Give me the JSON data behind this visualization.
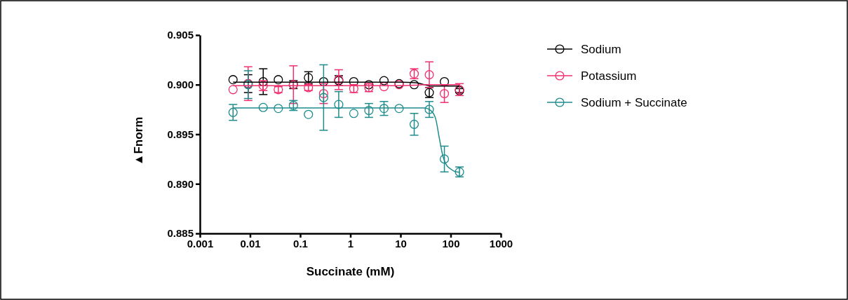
{
  "chart_data": {
    "type": "scatter",
    "xlabel": "Succinate (mM)",
    "ylabel": "▲Fnorm",
    "log": "x",
    "marker": "circle",
    "legend": "right",
    "xlim": [
      0.001,
      1000
    ],
    "xticks": [
      0.001,
      0.01,
      0.1,
      1,
      10,
      100,
      1000
    ],
    "ylim": [
      0.885,
      0.905
    ],
    "yticks": [
      {
        "value": 0.885,
        "label": "0.885"
      },
      {
        "value": 0.89,
        "label": "0.890"
      },
      {
        "value": 0.895,
        "label": "0.895"
      },
      {
        "value": 0.9,
        "label": "0.900"
      },
      {
        "value": 0.905,
        "label": "0.905"
      }
    ],
    "x": [
      0.00458,
      0.00916,
      0.0183,
      0.0366,
      0.0732,
      0.146,
      0.293,
      0.586,
      1.17,
      2.34,
      4.69,
      9.38,
      18.75,
      37.5,
      75,
      150
    ],
    "series": [
      {
        "name": "Sodium",
        "color": "#000000",
        "values": [
          0.9005,
          0.9001,
          0.9003,
          0.9005,
          0.9,
          0.9007,
          0.9003,
          0.9004,
          0.9003,
          0.9,
          0.9004,
          0.9001,
          0.9,
          0.8992,
          0.9003,
          0.8994
        ],
        "errors": [
          null,
          0.0009,
          0.0013,
          null,
          0.0004,
          0.0006,
          null,
          0.0005,
          null,
          null,
          null,
          null,
          null,
          0.0005,
          null,
          0.0002
        ]
      },
      {
        "name": "Potassium",
        "color": "#f0306e",
        "values": [
          0.8995,
          0.9001,
          0.8999,
          0.8995,
          0.9,
          0.8997,
          0.8991,
          0.9005,
          0.8996,
          0.8997,
          0.8998,
          0.9,
          0.9011,
          0.901,
          0.8991,
          0.8995
        ],
        "errors": [
          null,
          0.0017,
          0.0005,
          0.0003,
          0.0019,
          0.0003,
          0.001,
          0.001,
          0.0004,
          0.0004,
          null,
          null,
          0.0005,
          0.0013,
          0.0009,
          0.0006
        ]
      },
      {
        "name": "Sodium + Succinate",
        "color": "#1f8c8c",
        "values": [
          0.8972,
          0.9,
          0.8977,
          0.8976,
          0.8979,
          0.897,
          0.8987,
          0.898,
          0.8971,
          0.8974,
          0.8976,
          0.8976,
          0.896,
          0.8975,
          0.8925,
          0.8912
        ],
        "errors": [
          0.0008,
          0.0014,
          null,
          null,
          0.0005,
          null,
          0.0033,
          0.0013,
          null,
          0.0007,
          0.0007,
          null,
          0.0011,
          0.0008,
          0.0013,
          0.0005
        ]
      },
      {
        "type": "line",
        "marker": "none",
        "color": "#000000",
        "x": [
          0.00458,
          10,
          20,
          30,
          40,
          150
        ],
        "values": [
          0.90025,
          0.90025,
          0.9002,
          0.9,
          0.89985,
          0.89985
        ]
      },
      {
        "type": "line",
        "marker": "none",
        "color": "#f0306e",
        "x": [
          0.00458,
          10,
          20,
          30,
          150
        ],
        "values": [
          0.8999,
          0.8999,
          0.89995,
          0.9,
          0.9
        ]
      },
      {
        "type": "line",
        "marker": "none",
        "color": "#1f8c8c",
        "x": [
          0.00458,
          30,
          40,
          50,
          60,
          70,
          80,
          100,
          120,
          150
        ],
        "values": [
          0.89765,
          0.89765,
          0.8974,
          0.8966,
          0.8945,
          0.8928,
          0.892,
          0.8915,
          0.89125,
          0.89117
        ]
      }
    ]
  }
}
